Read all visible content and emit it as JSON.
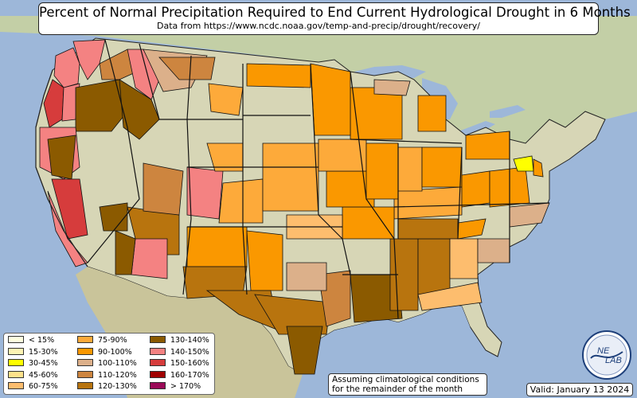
{
  "title": "Percent of Normal Precipitation Required to End Current Hydrological Drought in 6 Months",
  "subtitle": "Data from https://www.ncdc.noaa.gov/temp-and-precip/drought/recovery/",
  "note_lines": [
    "Assuming climatological conditions",
    "for the remainder of the month"
  ],
  "valid": "Valid: January 13 2024",
  "logo_text": [
    "NE",
    "LAB"
  ],
  "colors": {
    "ocean": "#9db7d9",
    "land": "#d7d6b6",
    "mexico": "#c9c49a",
    "canada_north": "#bcc9a3",
    "border": "#222222"
  },
  "legend": [
    {
      "label": "< 15%",
      "color": "#ffffe0"
    },
    {
      "label": "15-30%",
      "color": "#fff5b4"
    },
    {
      "label": "30-45%",
      "color": "#ffff00"
    },
    {
      "label": "45-60%",
      "color": "#ffe28c"
    },
    {
      "label": "60-75%",
      "color": "#fdbd6e"
    },
    {
      "label": "75-90%",
      "color": "#fdaa3a"
    },
    {
      "label": "90-100%",
      "color": "#fa9800"
    },
    {
      "label": "100-110%",
      "color": "#dcb08a"
    },
    {
      "label": "110-120%",
      "color": "#cd853f"
    },
    {
      "label": "120-130%",
      "color": "#b8740e"
    },
    {
      "label": "130-140%",
      "color": "#8b5a00"
    },
    {
      "label": "140-150%",
      "color": "#f48282"
    },
    {
      "label": "150-160%",
      "color": "#d63c3c"
    },
    {
      "label": "160-170%",
      "color": "#a00000"
    },
    {
      "label": "> 170%",
      "color": "#9b0a58"
    }
  ]
}
